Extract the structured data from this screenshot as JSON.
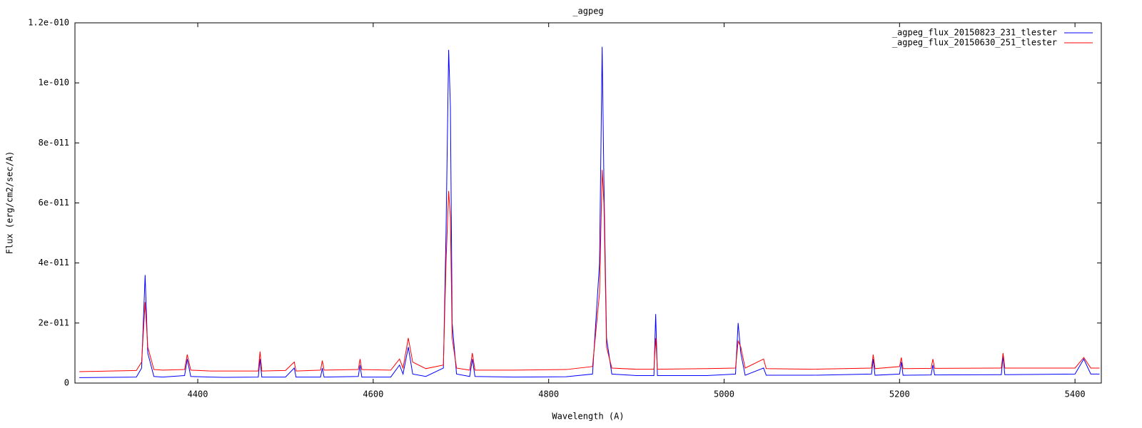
{
  "chart_data": {
    "type": "line",
    "title": "_agpeg",
    "x_label": "Wavelength (A)",
    "y_label": "Flux (erg/cm2/sec/A)",
    "xlim": [
      4260,
      5430
    ],
    "xticks": [
      4400,
      4600,
      4800,
      5000,
      5200,
      5400
    ],
    "ylim": [
      0,
      1.2e-10
    ],
    "yticks": [
      0,
      {
        "value": 2e-11,
        "label": "2e-011"
      },
      {
        "value": 4e-11,
        "label": "4e-011"
      },
      {
        "value": 6e-11,
        "label": "6e-011"
      },
      {
        "value": 8e-11,
        "label": "8e-011"
      },
      {
        "value": 1e-10,
        "label": "1e-010"
      },
      {
        "value": 1.2e-10,
        "label": "1.2e-010"
      }
    ],
    "legend": "top-right",
    "x": [
      4265,
      4300,
      4330,
      4336,
      4340,
      4343,
      4350,
      4360,
      4385,
      4388,
      4392,
      4415,
      4430,
      4469,
      4471,
      4473,
      4500,
      4510,
      4512,
      4540,
      4542,
      4544,
      4583,
      4585,
      4587,
      4620,
      4630,
      4634,
      4640,
      4645,
      4660,
      4680,
      4683,
      4686,
      4688,
      4690,
      4695,
      4710,
      4713,
      4716,
      4760,
      4820,
      4850,
      4858,
      4861,
      4863,
      4866,
      4872,
      4900,
      4920,
      4922,
      4924,
      4980,
      5013,
      5016,
      5019,
      5024,
      5045,
      5048,
      5100,
      5168,
      5170,
      5172,
      5200,
      5202,
      5204,
      5236,
      5238,
      5240,
      5316,
      5318,
      5320,
      5400,
      5410,
      5418,
      5428
    ],
    "series": [
      {
        "name": "_agpeg_flux_20150823_231_tlester",
        "color": "#0000ff",
        "values": [
          1.8e-12,
          1.9e-12,
          2e-12,
          5e-12,
          3.6e-11,
          1e-11,
          2.2e-12,
          2e-12,
          2.5e-12,
          8e-12,
          2.2e-12,
          2e-12,
          1.9e-12,
          2e-12,
          8e-12,
          2e-12,
          2e-12,
          5e-12,
          2e-12,
          2e-12,
          5e-12,
          2e-12,
          2.2e-12,
          6e-12,
          2e-12,
          2e-12,
          6e-12,
          3e-12,
          1.2e-11,
          3e-12,
          2.2e-12,
          5e-12,
          5e-11,
          1.11e-10,
          9.2e-11,
          2e-11,
          3e-12,
          2.2e-12,
          8e-12,
          2.2e-12,
          2e-12,
          2.1e-12,
          3e-12,
          4e-11,
          1.12e-10,
          6.7e-11,
          1.5e-11,
          3e-12,
          2.5e-12,
          2.5e-12,
          2.3e-11,
          2.5e-12,
          2.5e-12,
          3e-12,
          2e-11,
          1e-11,
          2.6e-12,
          5e-12,
          2.6e-12,
          2.6e-12,
          3e-12,
          8e-12,
          2.6e-12,
          3e-12,
          7e-12,
          2.6e-12,
          2.7e-12,
          6e-12,
          2.7e-12,
          2.8e-12,
          9e-12,
          2.8e-12,
          3e-12,
          8e-12,
          3e-12,
          3e-12
        ]
      },
      {
        "name": "_agpeg_flux_20150630_251_tlester",
        "color": "#ff0000",
        "values": [
          3.8e-12,
          4e-12,
          4.2e-12,
          7e-12,
          2.7e-11,
          1.2e-11,
          4.5e-12,
          4.3e-12,
          4.5e-12,
          9.5e-12,
          4.3e-12,
          4e-12,
          4e-12,
          4e-12,
          1.05e-11,
          4e-12,
          4.2e-12,
          7e-12,
          4e-12,
          4.3e-12,
          7.5e-12,
          4.3e-12,
          4.5e-12,
          8e-12,
          4.5e-12,
          4.3e-12,
          8e-12,
          5e-12,
          1.5e-11,
          7e-12,
          4.8e-12,
          6e-12,
          4e-11,
          6.4e-11,
          5.5e-11,
          1.5e-11,
          5e-12,
          4.3e-12,
          1e-11,
          4.3e-12,
          4.3e-12,
          4.5e-12,
          5.5e-12,
          3e-11,
          7.1e-11,
          6e-11,
          1.2e-11,
          5e-12,
          4.6e-12,
          4.6e-12,
          1.5e-11,
          4.6e-12,
          4.8e-12,
          5e-12,
          1.4e-11,
          1.2e-11,
          5e-12,
          8e-12,
          4.8e-12,
          4.6e-12,
          5e-12,
          9.5e-12,
          4.8e-12,
          5.5e-12,
          8.5e-12,
          4.8e-12,
          4.9e-12,
          8e-12,
          4.9e-12,
          5e-12,
          1e-11,
          5e-12,
          5e-12,
          8.5e-12,
          5e-12,
          5e-12
        ]
      }
    ]
  }
}
